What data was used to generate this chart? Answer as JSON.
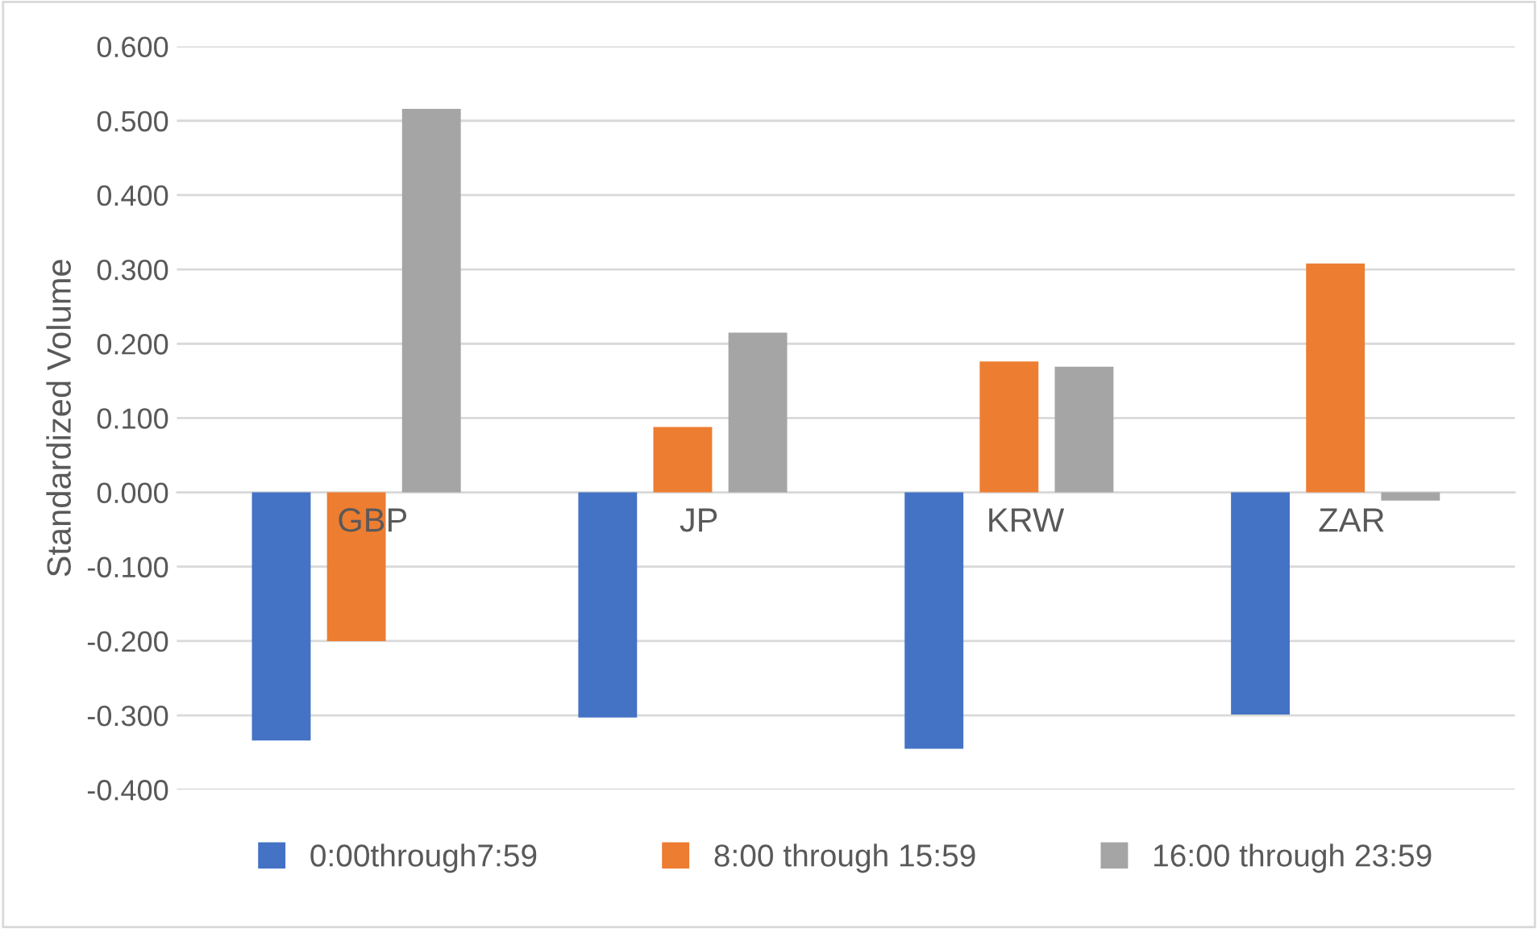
{
  "chart_data": {
    "type": "bar",
    "ylabel": "Standardized Volume",
    "categories": [
      "GBP",
      "JP",
      "KRW",
      "ZAR"
    ],
    "series": [
      {
        "name": "0:00through7:59",
        "color": "#4472c4",
        "values": [
          -0.334,
          -0.303,
          -0.345,
          -0.299
        ]
      },
      {
        "name": "8:00 through 15:59",
        "color": "#ed7d31",
        "values": [
          -0.2,
          0.088,
          0.176,
          0.308
        ]
      },
      {
        "name": "16:00 through 23:59",
        "color": "#a5a5a5",
        "values": [
          0.516,
          0.215,
          0.169,
          -0.011
        ]
      }
    ],
    "ylim": [
      -0.4,
      0.6
    ],
    "yticks": [
      {
        "value": -0.4,
        "label": "-0.400"
      },
      {
        "value": -0.3,
        "label": "-0.300"
      },
      {
        "value": -0.2,
        "label": "-0.200"
      },
      {
        "value": -0.1,
        "label": "-0.100"
      },
      {
        "value": 0,
        "label": "0.000"
      },
      {
        "value": 0.1,
        "label": "0.100"
      },
      {
        "value": 0.2,
        "label": "0.200"
      },
      {
        "value": 0.3,
        "label": "0.300"
      },
      {
        "value": 0.4,
        "label": "0.400"
      },
      {
        "value": 0.5,
        "label": "0.500"
      },
      {
        "value": 0.6,
        "label": "0.600"
      }
    ],
    "grid": "y",
    "legend": "bottom"
  }
}
